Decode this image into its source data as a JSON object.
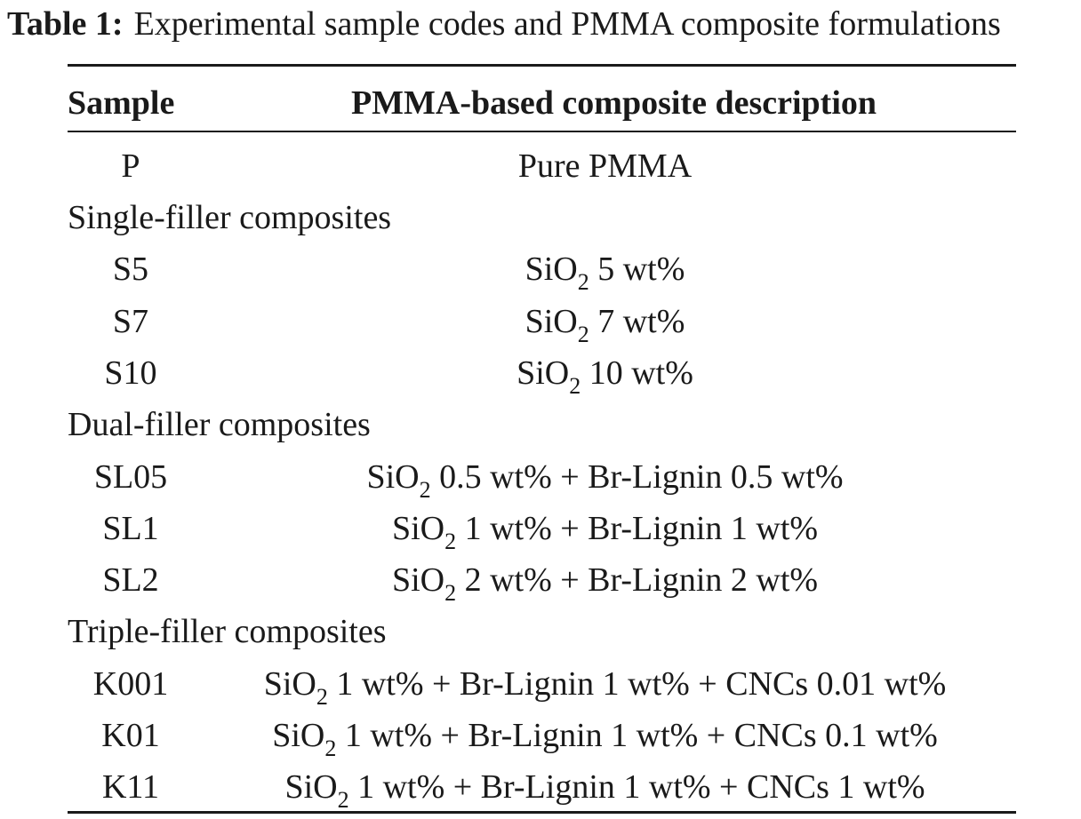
{
  "caption": {
    "label": "Table 1:",
    "text": "Experimental sample codes and PMMA composite formulations"
  },
  "table": {
    "headers": {
      "sample": "Sample",
      "description": "PMMA-based composite description"
    },
    "row_p": {
      "sample": "P",
      "description": "Pure PMMA"
    },
    "group_single": "Single-filler composites",
    "row_s5": {
      "sample": "S5",
      "chem": "SiO",
      "sub": "2",
      "rest": " 5 wt%"
    },
    "row_s7": {
      "sample": "S7",
      "chem": "SiO",
      "sub": "2",
      "rest": " 7 wt%"
    },
    "row_s10": {
      "sample": "S10",
      "chem": "SiO",
      "sub": "2",
      "rest": " 10 wt%"
    },
    "group_dual": "Dual-filler composites",
    "row_sl05": {
      "sample": "SL05",
      "chem": "SiO",
      "sub": "2",
      "rest": " 0.5 wt% + Br-Lignin 0.5 wt%"
    },
    "row_sl1": {
      "sample": "SL1",
      "chem": "SiO",
      "sub": "2",
      "rest": " 1 wt% + Br-Lignin 1 wt%"
    },
    "row_sl2": {
      "sample": "SL2",
      "chem": "SiO",
      "sub": "2",
      "rest": " 2 wt% + Br-Lignin 2 wt%"
    },
    "group_triple": "Triple-filler composites",
    "row_k001": {
      "sample": "K001",
      "chem": "SiO",
      "sub": "2",
      "rest": " 1 wt% + Br-Lignin 1 wt% + CNCs 0.01 wt%"
    },
    "row_k01": {
      "sample": "K01",
      "chem": "SiO",
      "sub": "2",
      "rest": " 1 wt% + Br-Lignin 1 wt% + CNCs 0.1 wt%"
    },
    "row_k11": {
      "sample": "K11",
      "chem": "SiO",
      "sub": "2",
      "rest": " 1 wt% + Br-Lignin 1 wt% + CNCs 1 wt%"
    }
  }
}
